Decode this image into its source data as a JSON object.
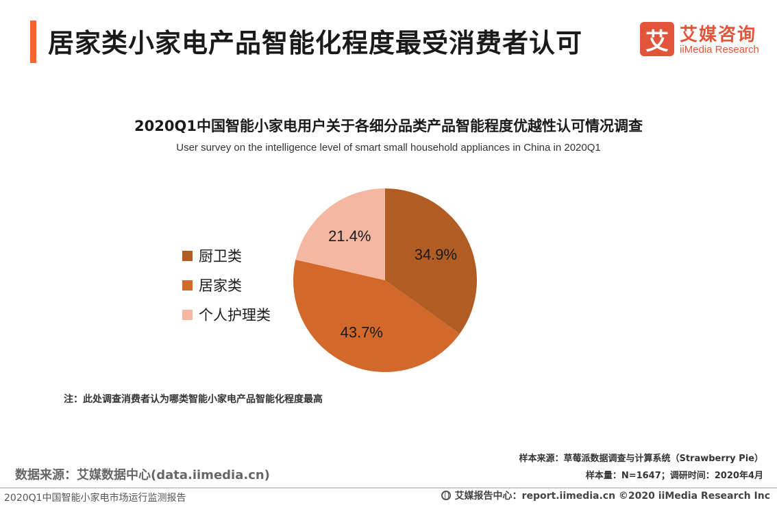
{
  "header": {
    "title": "居家类小家电产品智能化程度最受消费者认可",
    "brand_logo_char": "艾",
    "brand_cn": "艾媒咨询",
    "brand_en": "iiMedia Research"
  },
  "chart_data": {
    "type": "pie",
    "title": "2020Q1中国智能小家电用户关于各细分品类产品智能程度优越性认可情况调查",
    "subtitle": "User survey on the intelligence level of smart small household appliances in China in 2020Q1",
    "categories": [
      "厨卫类",
      "居家类",
      "个人护理类"
    ],
    "values": [
      34.9,
      43.7,
      21.4
    ],
    "labels": [
      "34.9%",
      "43.7%",
      "21.4%"
    ],
    "colors": [
      "#b05c23",
      "#d2692b",
      "#f4b8a2"
    ],
    "legend_position": "left"
  },
  "note": "注：此处调查消费者认为哪类智能小家电产品智能化程度最高",
  "sample_source": "样本来源：草莓派数据调查与计算系统（Strawberry Pie）",
  "sample_size": "样本量：N=1647；调研时间：2020年4月",
  "data_source": "数据来源：艾媒数据中心(data.iimedia.cn)",
  "footer": {
    "left": "2020Q1中国智能小家电市场运行监测报告",
    "right": "艾媒报告中心：report.iimedia.cn  ©2020  iiMedia Research  Inc"
  }
}
